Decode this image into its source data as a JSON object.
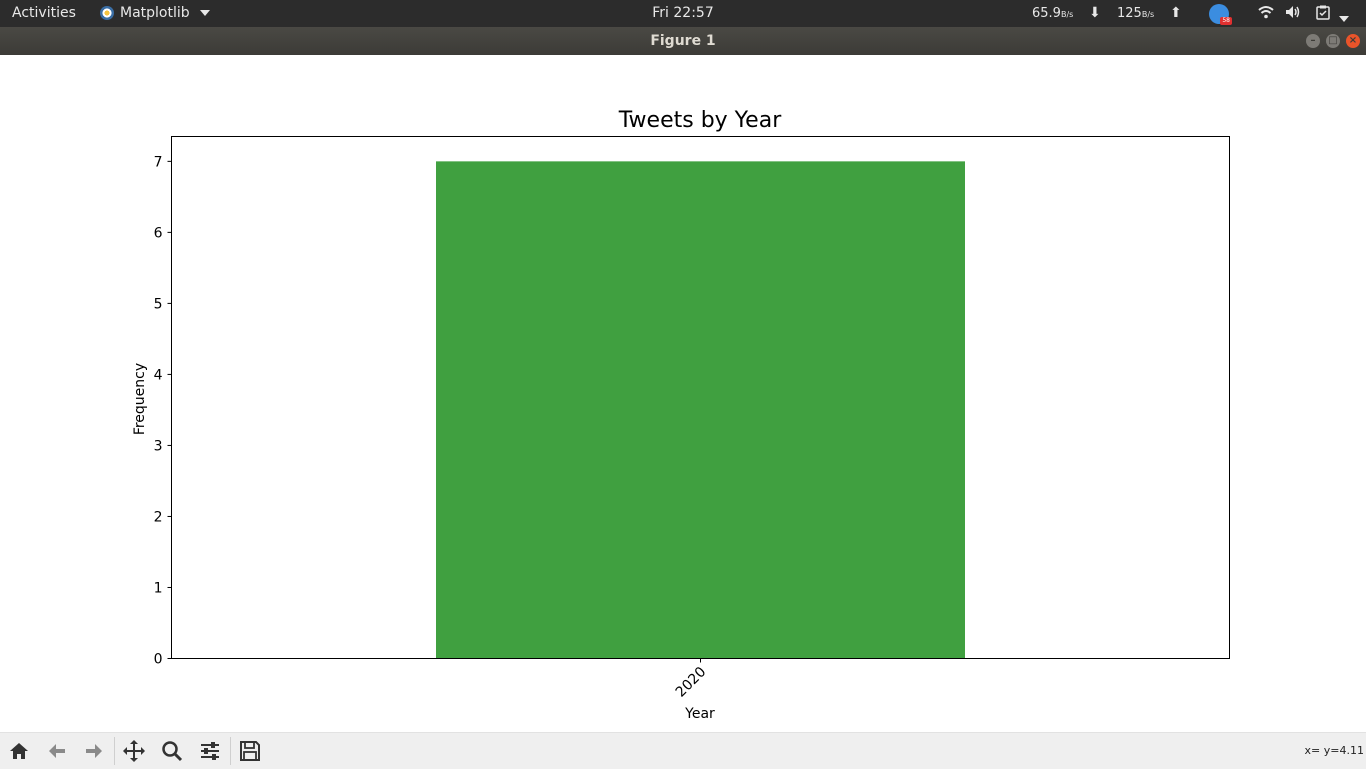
{
  "topbar": {
    "activities": "Activities",
    "app_name": "Matplotlib",
    "clock": "Fri 22:57",
    "net_down_value": "65.9",
    "net_down_unit": "B/s",
    "net_up_value": "125",
    "net_up_unit": "B/s",
    "notif_count": "58"
  },
  "window": {
    "title": "Figure 1"
  },
  "chart_data": {
    "type": "bar",
    "title": "Tweets by Year",
    "xlabel": "Year",
    "ylabel": "Frequency",
    "categories": [
      "2020"
    ],
    "values": [
      7
    ],
    "ylim": [
      0,
      7.35
    ],
    "yticks": [
      0,
      1,
      2,
      3,
      4,
      5,
      6,
      7
    ],
    "bar_color": "#40a040",
    "xtick_rotation": "45",
    "grid": false
  },
  "toolbar": {
    "coords": "x= y=4.11"
  }
}
